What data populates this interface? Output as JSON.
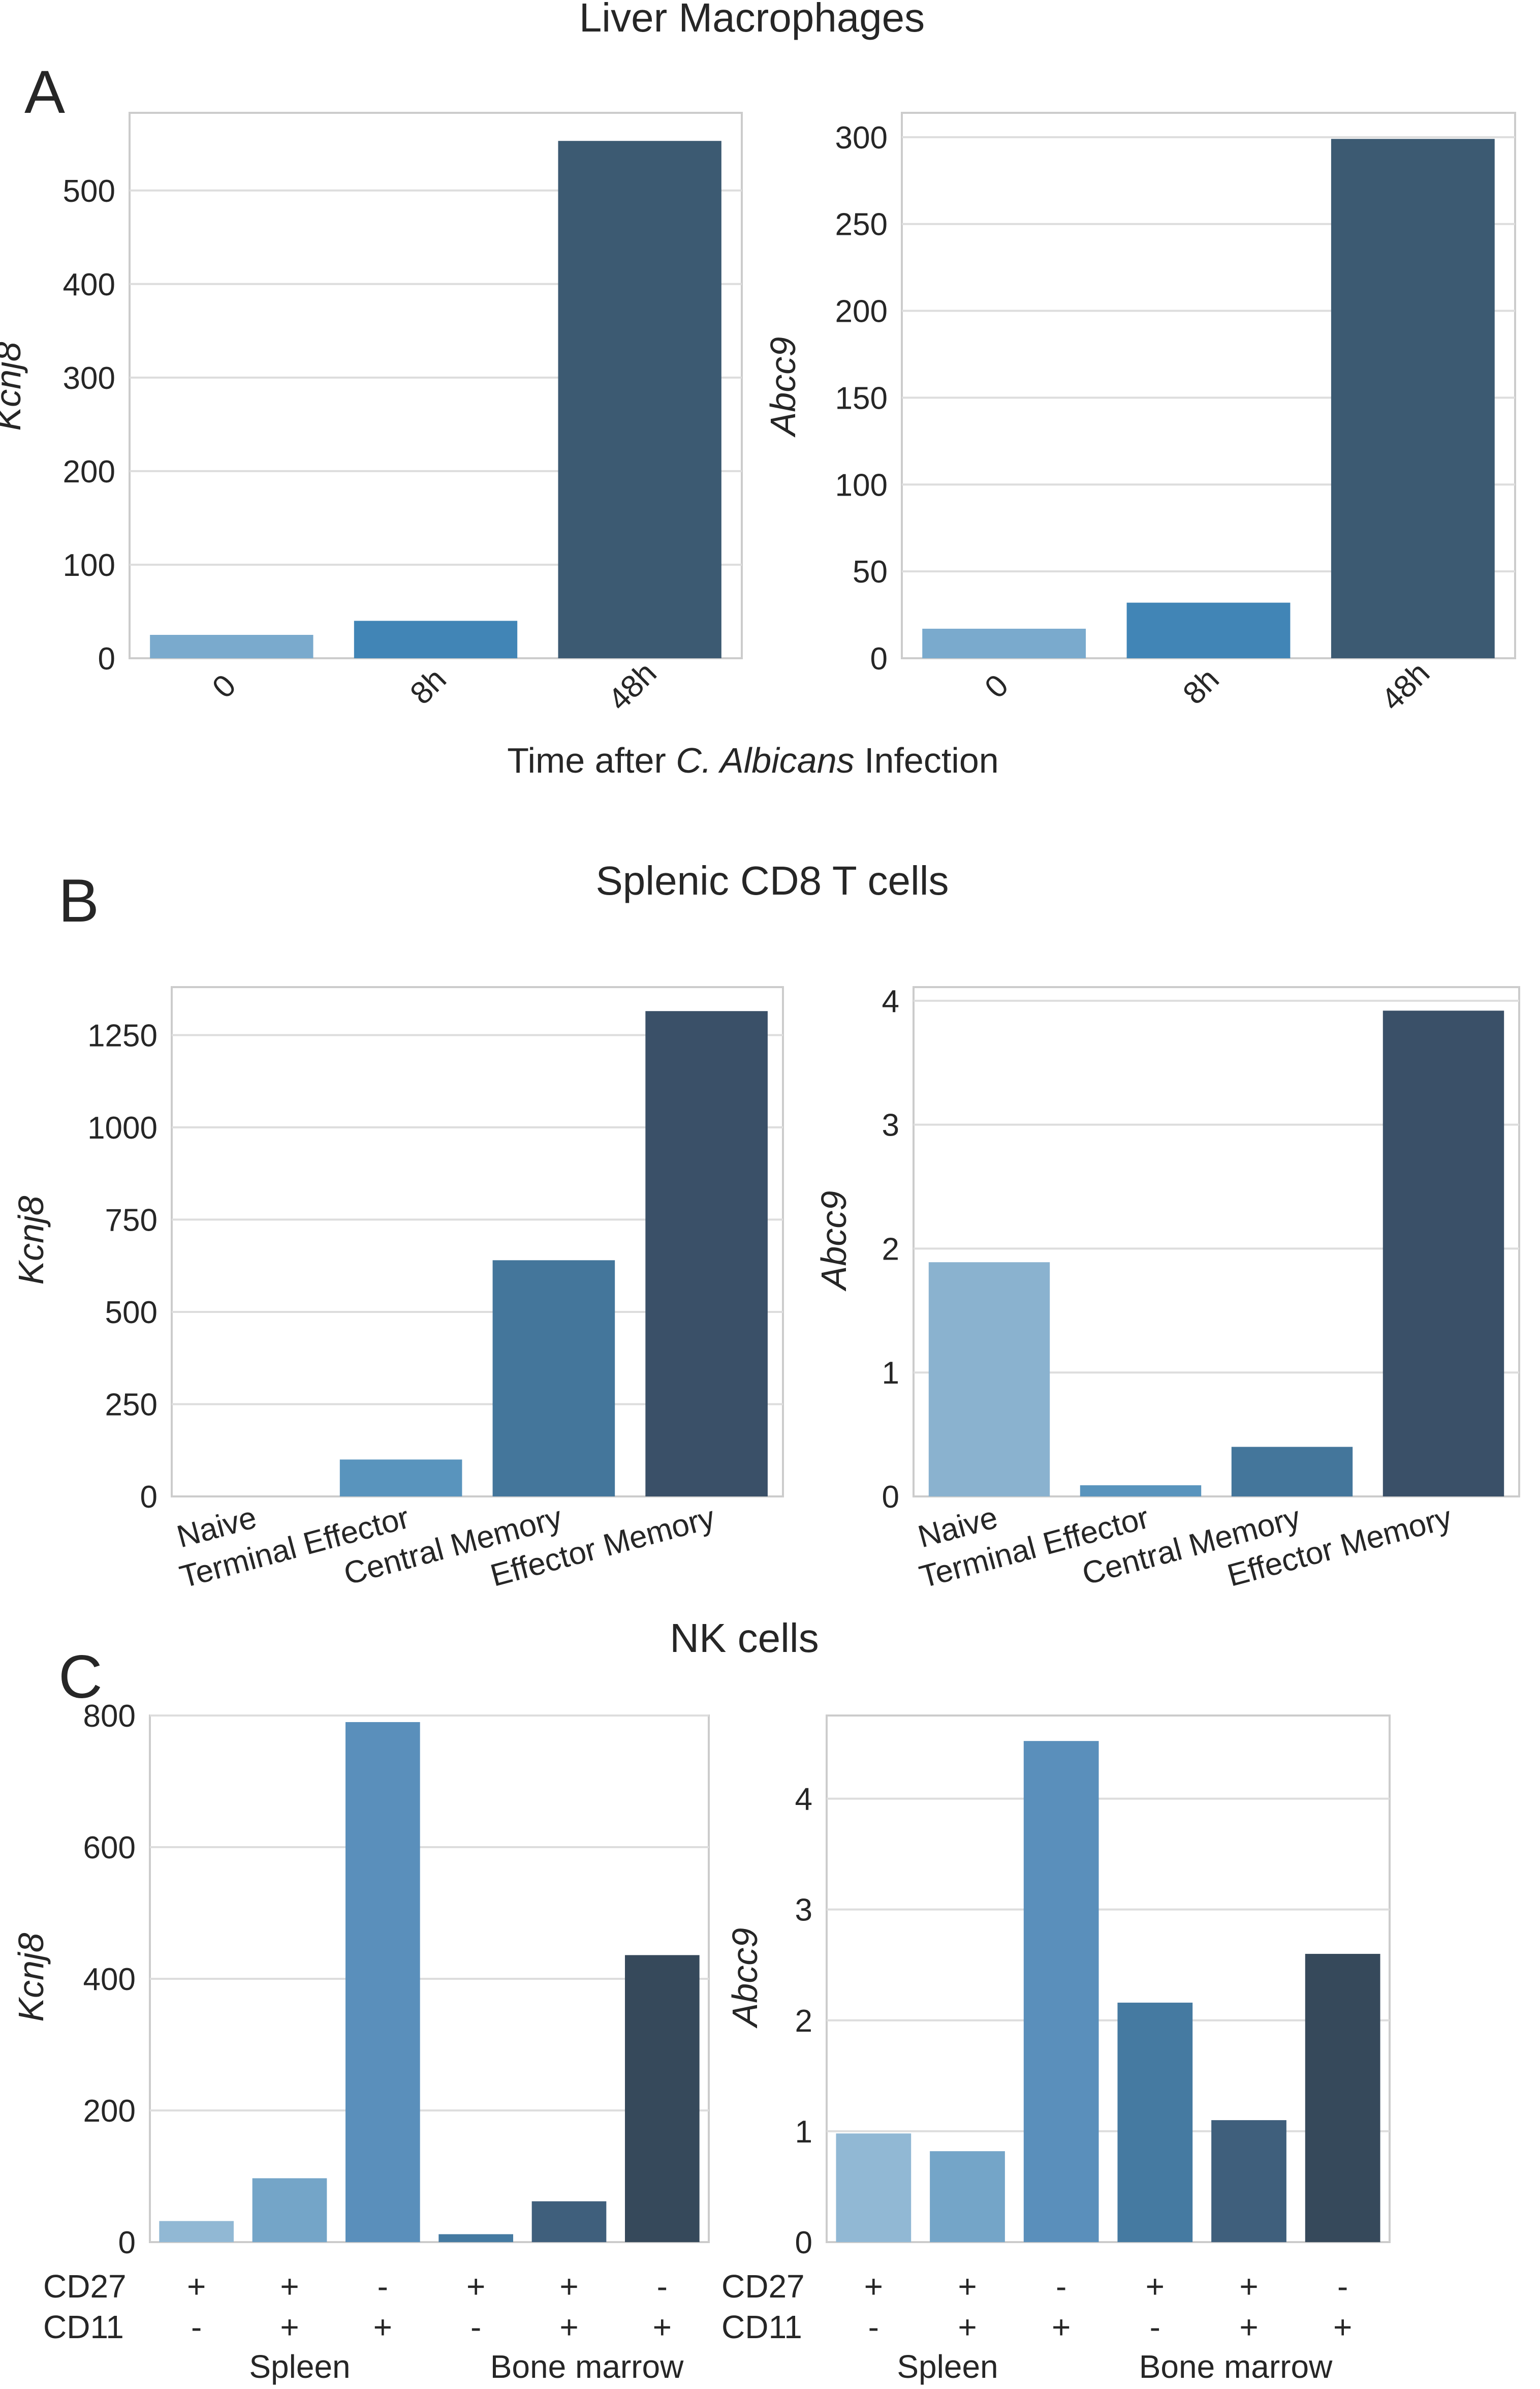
{
  "panel_labels": [
    "A",
    "B",
    "C"
  ],
  "panel_titles": [
    "Liver Macrophages",
    "Splenic CD8 T cells",
    "NK cells"
  ],
  "xaxis_a": {
    "prefix": "Time after ",
    "italic": "C. Albicans",
    "suffix": " Infection"
  },
  "colors": {
    "a": [
      "#7aaacd",
      "#4185b6",
      "#3c5a72"
    ],
    "b": [
      "#8ab2cf",
      "#5994bd",
      "#44769b",
      "#3a5068"
    ],
    "c": [
      "#91b8d4",
      "#74a5c8",
      "#5a8fbb",
      "#457aa1",
      "#3f5f7c",
      "#36495b"
    ]
  },
  "nk_table": {
    "row_labels": [
      "CD27",
      "CD11"
    ],
    "cd27": [
      "+",
      "+",
      "-",
      "+",
      "+",
      "-"
    ],
    "cd11": [
      "-",
      "+",
      "+",
      "-",
      "+",
      "+"
    ],
    "groups": [
      "Spleen",
      "Bone marrow"
    ]
  },
  "chart_data": [
    {
      "id": "a1",
      "type": "bar",
      "ylabel": "Kcnj8",
      "categories": [
        "0",
        "8h",
        "48h"
      ],
      "values": [
        25,
        40,
        553
      ],
      "yticks": [
        0,
        100,
        200,
        300,
        400,
        500
      ],
      "ylim": [
        0,
        583
      ]
    },
    {
      "id": "a2",
      "type": "bar",
      "ylabel": "Abcc9",
      "categories": [
        "0",
        "8h",
        "48h"
      ],
      "values": [
        17,
        32,
        299
      ],
      "yticks": [
        0,
        50,
        100,
        150,
        200,
        250,
        300
      ],
      "ylim": [
        0,
        314
      ]
    },
    {
      "id": "b1",
      "type": "bar",
      "ylabel": "Kcnj8",
      "categories": [
        "Naive",
        "Terminal Effector",
        "Central Memory",
        "Effector Memory"
      ],
      "values": [
        0,
        100,
        640,
        1315
      ],
      "yticks": [
        0,
        250,
        500,
        750,
        1000,
        1250
      ],
      "ylim": [
        0,
        1380
      ]
    },
    {
      "id": "b2",
      "type": "bar",
      "ylabel": "Abcc9",
      "categories": [
        "Naive",
        "Terminal Effector",
        "Central Memory",
        "Effector Memory"
      ],
      "values": [
        1.89,
        0.09,
        0.4,
        3.92
      ],
      "yticks": [
        0,
        1,
        2,
        3,
        4
      ],
      "ylim": [
        0,
        4.11
      ]
    },
    {
      "id": "c1",
      "type": "bar",
      "ylabel": "Kcnj8",
      "categories": [
        "CD27+ CD11- Spleen",
        "CD27+ CD11+ Spleen",
        "CD27- CD11+ Spleen",
        "CD27+ CD11- Bone marrow",
        "CD27+ CD11+ Bone marrow",
        "CD27- CD11+ Bone marrow"
      ],
      "values": [
        32,
        97,
        790,
        12,
        62,
        436
      ],
      "yticks": [
        0,
        200,
        400,
        600,
        800
      ],
      "ylim": [
        0,
        800
      ]
    },
    {
      "id": "c2",
      "type": "bar",
      "ylabel": "Abcc9",
      "categories": [
        "CD27+ CD11- Spleen",
        "CD27+ CD11+ Spleen",
        "CD27- CD11+ Spleen",
        "CD27+ CD11- Bone marrow",
        "CD27+ CD11+ Bone marrow",
        "CD27- CD11+ Bone marrow"
      ],
      "values": [
        0.98,
        0.82,
        4.52,
        2.16,
        1.1,
        2.6
      ],
      "yticks": [
        0,
        1,
        2,
        3,
        4
      ],
      "ylim": [
        0,
        4.75
      ]
    }
  ]
}
